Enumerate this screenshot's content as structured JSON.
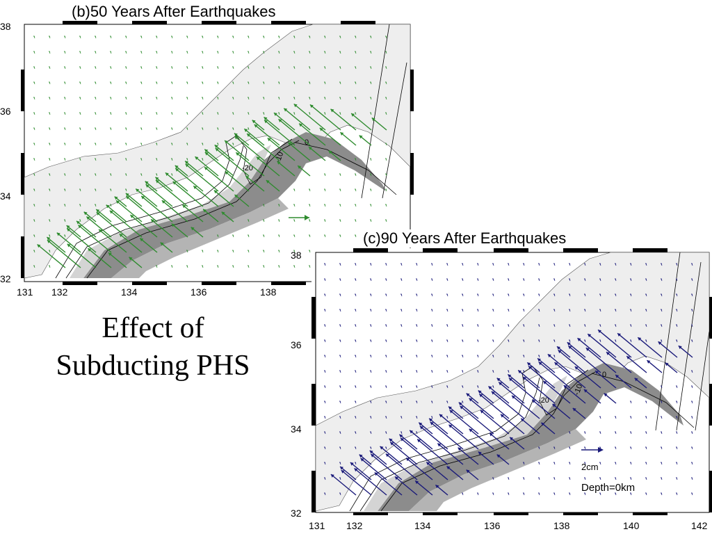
{
  "caption": {
    "line1": "Effect of",
    "line2": "Subducting PHS"
  },
  "panels": [
    {
      "id": "b",
      "title": "(b)50 Years After Earthquakes",
      "arrow_color": "#2e8b2e",
      "x_ticks": [
        "131",
        "132",
        "134",
        "136",
        "138"
      ],
      "y_ticks": [
        "38",
        "36",
        "34",
        "32"
      ]
    },
    {
      "id": "c",
      "title": "(c)90 Years After Earthquakes",
      "arrow_color": "#1a1a7a",
      "x_ticks": [
        "131",
        "132",
        "134",
        "136",
        "138",
        "140",
        "142"
      ],
      "y_ticks": [
        "38",
        "36",
        "34",
        "32"
      ],
      "legend": {
        "scale_label": "2cm",
        "depth_label": "Depth=0km"
      }
    }
  ],
  "contour_labels": [
    "-20",
    "-10",
    "0"
  ],
  "colors": {
    "land": "#eeeeee",
    "slab_dark": "#8c8c8c",
    "slab_mid": "#b4b4b4",
    "slab_light": "#d4d4d4",
    "frame": "#000000"
  }
}
